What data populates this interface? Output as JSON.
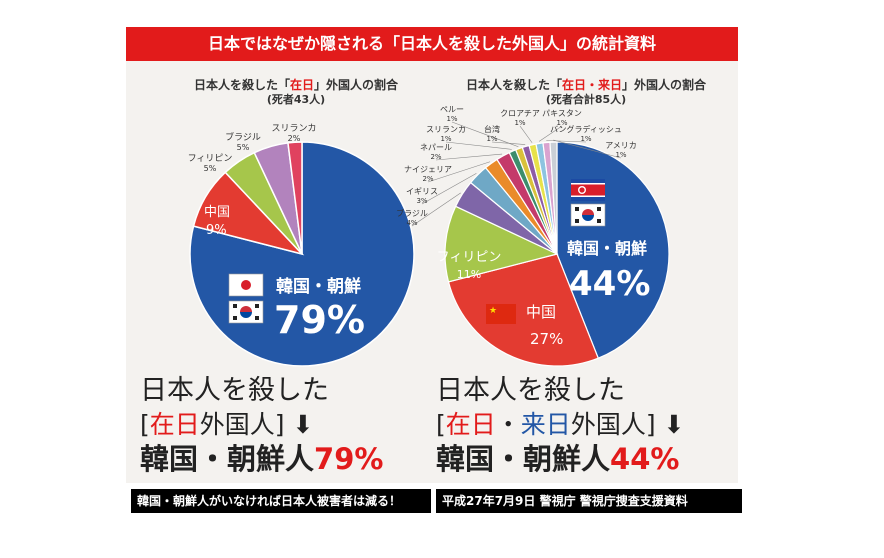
{
  "banner": {
    "title": "日本ではなぜか隠される「日本人を殺した外国人」の統計資料"
  },
  "chart_data": [
    {
      "type": "pie",
      "title_parts": [
        "日本人を殺した「",
        "在日",
        "」外国人の割合"
      ],
      "subtitle": "(死者43人)",
      "slices": [
        {
          "label": "韓国・朝鮮",
          "value": 79,
          "display": "79%",
          "color": "#2357a6"
        },
        {
          "label": "中国",
          "value": 9,
          "display": "9%",
          "color": "#e33b31"
        },
        {
          "label": "フィリピン",
          "value": 5,
          "display": "5%",
          "color": "#a6c64b"
        },
        {
          "label": "ブラジル",
          "value": 5,
          "display": "5%",
          "color": "#b283bd"
        },
        {
          "label": "スリランカ",
          "value": 2,
          "display": "2%",
          "color": "#e0425f"
        }
      ]
    },
    {
      "type": "pie",
      "title_parts": [
        "日本人を殺した「",
        "在日・来日",
        "」外国人の割合"
      ],
      "subtitle": "(死者合計85人)",
      "slices": [
        {
          "label": "韓国・朝鮮",
          "value": 44,
          "display": "44%",
          "color": "#2357a6"
        },
        {
          "label": "中国",
          "value": 27,
          "display": "27%",
          "color": "#e33b31"
        },
        {
          "label": "フィリピン",
          "value": 11,
          "display": "11%",
          "color": "#a6c64b"
        },
        {
          "label": "ブラジル",
          "value": 4,
          "display": "4%",
          "color": "#7f66a8"
        },
        {
          "label": "イギリス",
          "value": 3,
          "display": "3%",
          "color": "#6fa8c6"
        },
        {
          "label": "ナイジェリア",
          "value": 2,
          "display": "2%",
          "color": "#ea8b2a"
        },
        {
          "label": "ネパール",
          "value": 2,
          "display": "2%",
          "color": "#c43a6a"
        },
        {
          "label": "スリランカ",
          "value": 1,
          "display": "1%",
          "color": "#3d8d6c"
        },
        {
          "label": "ペルー",
          "value": 1,
          "display": "1%",
          "color": "#d9c13b"
        },
        {
          "label": "台湾",
          "value": 1,
          "display": "1%",
          "color": "#8d5ca6"
        },
        {
          "label": "クロアチア",
          "value": 1,
          "display": "1%",
          "color": "#e8e24a"
        },
        {
          "label": "パキスタン",
          "value": 1,
          "display": "1%",
          "color": "#8dc4e0"
        },
        {
          "label": "バングラディッシュ",
          "value": 1,
          "display": "1%",
          "color": "#d9a3cf"
        },
        {
          "label": "アメリカ",
          "value": 1,
          "display": "1%",
          "color": "#c9cfd6"
        }
      ]
    }
  ],
  "headlines": [
    {
      "line1": "日本人を殺した",
      "line2_parts": [
        "[",
        "在日",
        "外国人] ⬇"
      ],
      "line3": "韓国・朝鮮人",
      "pct": "79%"
    },
    {
      "line1": "日本人を殺した",
      "line2_parts": [
        "[",
        "在日",
        "・",
        "来日",
        "外国人] ⬇"
      ],
      "line3": "韓国・朝鮮人",
      "pct": "44%"
    }
  ],
  "captions": {
    "left": "韓国・朝鮮人がいなければ日本人被害者は減る！",
    "right": "平成27年7月9日 警視庁 警視庁捜査支援資料"
  },
  "colors": {
    "red": "#e21b1b",
    "blue": "#2357a6",
    "dark": "#222222"
  }
}
